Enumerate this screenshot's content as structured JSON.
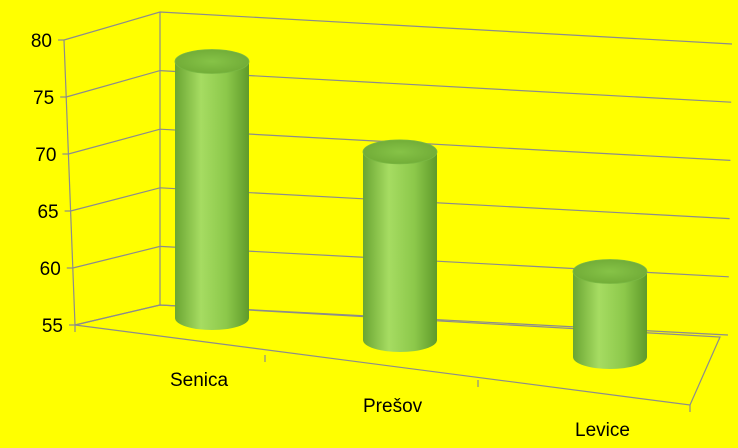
{
  "chart_data": {
    "type": "bar",
    "style": "3d-cylinder",
    "title": "",
    "xlabel": "",
    "ylabel": "",
    "categories": [
      "Senica",
      "Prešov",
      "Levice"
    ],
    "values": [
      77.5,
      71.5,
      62.5
    ],
    "ylim": [
      55,
      80
    ],
    "yticks": [
      55,
      60,
      65,
      70,
      75,
      80
    ],
    "grid": true,
    "legend": "none",
    "colors": {
      "background": "#ffff00",
      "bar": "#92d050",
      "bar_dark": "#5f9a2a",
      "bar_top": "#7fbf3f",
      "grid": "#8c8c8c"
    }
  }
}
